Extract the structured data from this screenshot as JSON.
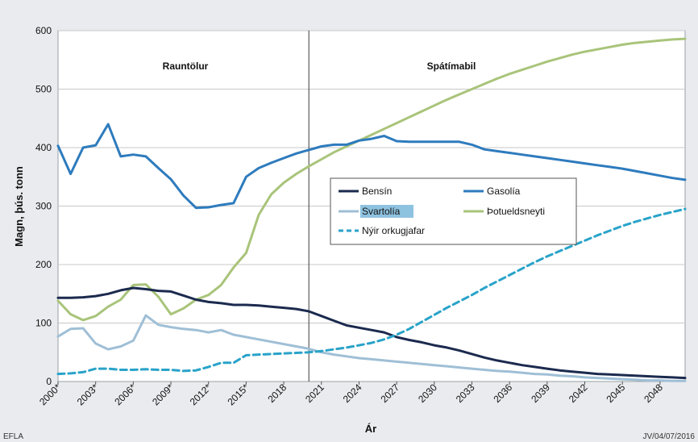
{
  "chart_data": {
    "type": "line",
    "xlabel": "Ár",
    "ylabel": "Magn, þús. tonn",
    "ylim": [
      0,
      600
    ],
    "yticks": [
      0,
      100,
      200,
      300,
      400,
      500,
      600
    ],
    "xlim": [
      2000,
      2050
    ],
    "xtick_values": [
      2000,
      2003,
      2006,
      2009,
      2012,
      2015,
      2018,
      2021,
      2024,
      2027,
      2030,
      2033,
      2036,
      2039,
      2042,
      2045,
      2048
    ],
    "xtick_labels": [
      "2000*",
      "2003*",
      "2006*",
      "2009*",
      "2012*",
      "2015*",
      "2018",
      "2021",
      "2024",
      "2027",
      "2030",
      "2033",
      "2036",
      "2039",
      "2042",
      "2045",
      "2048"
    ],
    "grid": "horizontal",
    "legend_placement": "center-right",
    "divider_x": 2020,
    "region_labels": {
      "left": "Rauntölur",
      "right": "Spátímabil"
    },
    "series": [
      {
        "name": "Bensín",
        "color": "#1b2a4e",
        "dashed": false,
        "x": [
          2000,
          2001,
          2002,
          2003,
          2004,
          2005,
          2006,
          2007,
          2008,
          2009,
          2010,
          2011,
          2012,
          2013,
          2014,
          2015,
          2016,
          2017,
          2018,
          2019,
          2020,
          2021,
          2022,
          2023,
          2024,
          2025,
          2026,
          2027,
          2028,
          2029,
          2030,
          2031,
          2032,
          2033,
          2034,
          2035,
          2036,
          2037,
          2038,
          2039,
          2040,
          2041,
          2042,
          2043,
          2044,
          2045,
          2046,
          2047,
          2048,
          2049,
          2050
        ],
        "values": [
          143,
          143,
          144,
          146,
          150,
          156,
          160,
          158,
          155,
          154,
          147,
          140,
          136,
          134,
          131,
          131,
          130,
          128,
          126,
          124,
          120,
          112,
          104,
          96,
          92,
          88,
          84,
          76,
          71,
          67,
          62,
          58,
          53,
          47,
          41,
          36,
          32,
          28,
          25,
          22,
          19,
          17,
          15,
          13,
          12,
          11,
          10,
          9,
          8,
          7,
          6
        ]
      },
      {
        "name": "Gasolía",
        "color": "#2e7bbd",
        "dashed": false,
        "x": [
          2000,
          2001,
          2002,
          2003,
          2004,
          2005,
          2006,
          2007,
          2008,
          2009,
          2010,
          2011,
          2012,
          2013,
          2014,
          2015,
          2016,
          2017,
          2018,
          2019,
          2020,
          2021,
          2022,
          2023,
          2024,
          2025,
          2026,
          2027,
          2028,
          2029,
          2030,
          2031,
          2032,
          2033,
          2034,
          2035,
          2036,
          2037,
          2038,
          2039,
          2040,
          2041,
          2042,
          2043,
          2044,
          2045,
          2046,
          2047,
          2048,
          2049,
          2050
        ],
        "values": [
          403,
          355,
          400,
          404,
          440,
          385,
          388,
          385,
          365,
          346,
          318,
          297,
          298,
          302,
          305,
          350,
          365,
          374,
          382,
          390,
          396,
          402,
          405,
          405,
          412,
          415,
          420,
          411,
          410,
          410,
          410,
          410,
          410,
          405,
          397,
          394,
          391,
          388,
          385,
          382,
          379,
          376,
          373,
          370,
          367,
          364,
          360,
          356,
          352,
          348,
          345
        ]
      },
      {
        "name": "Svartolía",
        "color": "#9fbfd6",
        "dashed": false,
        "x": [
          2000,
          2001,
          2002,
          2003,
          2004,
          2005,
          2006,
          2007,
          2008,
          2009,
          2010,
          2011,
          2012,
          2013,
          2014,
          2015,
          2016,
          2017,
          2018,
          2019,
          2020,
          2021,
          2022,
          2023,
          2024,
          2025,
          2026,
          2027,
          2028,
          2029,
          2030,
          2031,
          2032,
          2033,
          2034,
          2035,
          2036,
          2037,
          2038,
          2039,
          2040,
          2041,
          2042,
          2043,
          2044,
          2045,
          2046,
          2047,
          2048,
          2049,
          2050
        ],
        "values": [
          77,
          90,
          91,
          65,
          55,
          60,
          70,
          113,
          97,
          93,
          90,
          88,
          84,
          88,
          80,
          76,
          72,
          68,
          64,
          60,
          56,
          50,
          46,
          43,
          40,
          38,
          36,
          34,
          32,
          30,
          28,
          26,
          24,
          22,
          20,
          18,
          17,
          15,
          13,
          12,
          10,
          9,
          7,
          6,
          5,
          4,
          3,
          2,
          2,
          1,
          1
        ]
      },
      {
        "name": "Þotueldsneyti",
        "color": "#a9c47a",
        "dashed": false,
        "x": [
          2000,
          2001,
          2002,
          2003,
          2004,
          2005,
          2006,
          2007,
          2008,
          2009,
          2010,
          2011,
          2012,
          2013,
          2014,
          2015,
          2016,
          2017,
          2018,
          2019,
          2020,
          2021,
          2022,
          2023,
          2024,
          2025,
          2026,
          2027,
          2028,
          2029,
          2030,
          2031,
          2032,
          2033,
          2034,
          2035,
          2036,
          2037,
          2038,
          2039,
          2040,
          2041,
          2042,
          2043,
          2044,
          2045,
          2046,
          2047,
          2048,
          2049,
          2050
        ],
        "values": [
          138,
          115,
          105,
          112,
          128,
          140,
          165,
          166,
          145,
          115,
          125,
          140,
          148,
          165,
          195,
          220,
          285,
          320,
          340,
          355,
          368,
          380,
          392,
          402,
          412,
          422,
          432,
          442,
          452,
          462,
          472,
          482,
          491,
          500,
          509,
          518,
          526,
          533,
          540,
          547,
          553,
          559,
          564,
          568,
          572,
          576,
          579,
          581,
          583,
          585,
          586
        ]
      },
      {
        "name": "Nýir orkugjafar",
        "color": "#29a3c9",
        "dashed": true,
        "x": [
          2000,
          2001,
          2002,
          2003,
          2004,
          2005,
          2006,
          2007,
          2008,
          2009,
          2010,
          2011,
          2012,
          2013,
          2014,
          2015,
          2016,
          2017,
          2018,
          2019,
          2020,
          2021,
          2022,
          2023,
          2024,
          2025,
          2026,
          2027,
          2028,
          2029,
          2030,
          2031,
          2032,
          2033,
          2034,
          2035,
          2036,
          2037,
          2038,
          2039,
          2040,
          2041,
          2042,
          2043,
          2044,
          2045,
          2046,
          2047,
          2048,
          2049,
          2050
        ],
        "values": [
          13,
          14,
          16,
          22,
          22,
          20,
          20,
          21,
          20,
          20,
          18,
          19,
          25,
          32,
          32,
          45,
          46,
          47,
          48,
          49,
          50,
          52,
          55,
          58,
          62,
          66,
          72,
          80,
          90,
          102,
          114,
          126,
          137,
          148,
          160,
          171,
          182,
          193,
          204,
          214,
          223,
          232,
          241,
          250,
          258,
          266,
          273,
          279,
          285,
          290,
          295
        ]
      }
    ]
  },
  "footer": {
    "left": "EFLA",
    "right": "JV/04/07/2016"
  }
}
